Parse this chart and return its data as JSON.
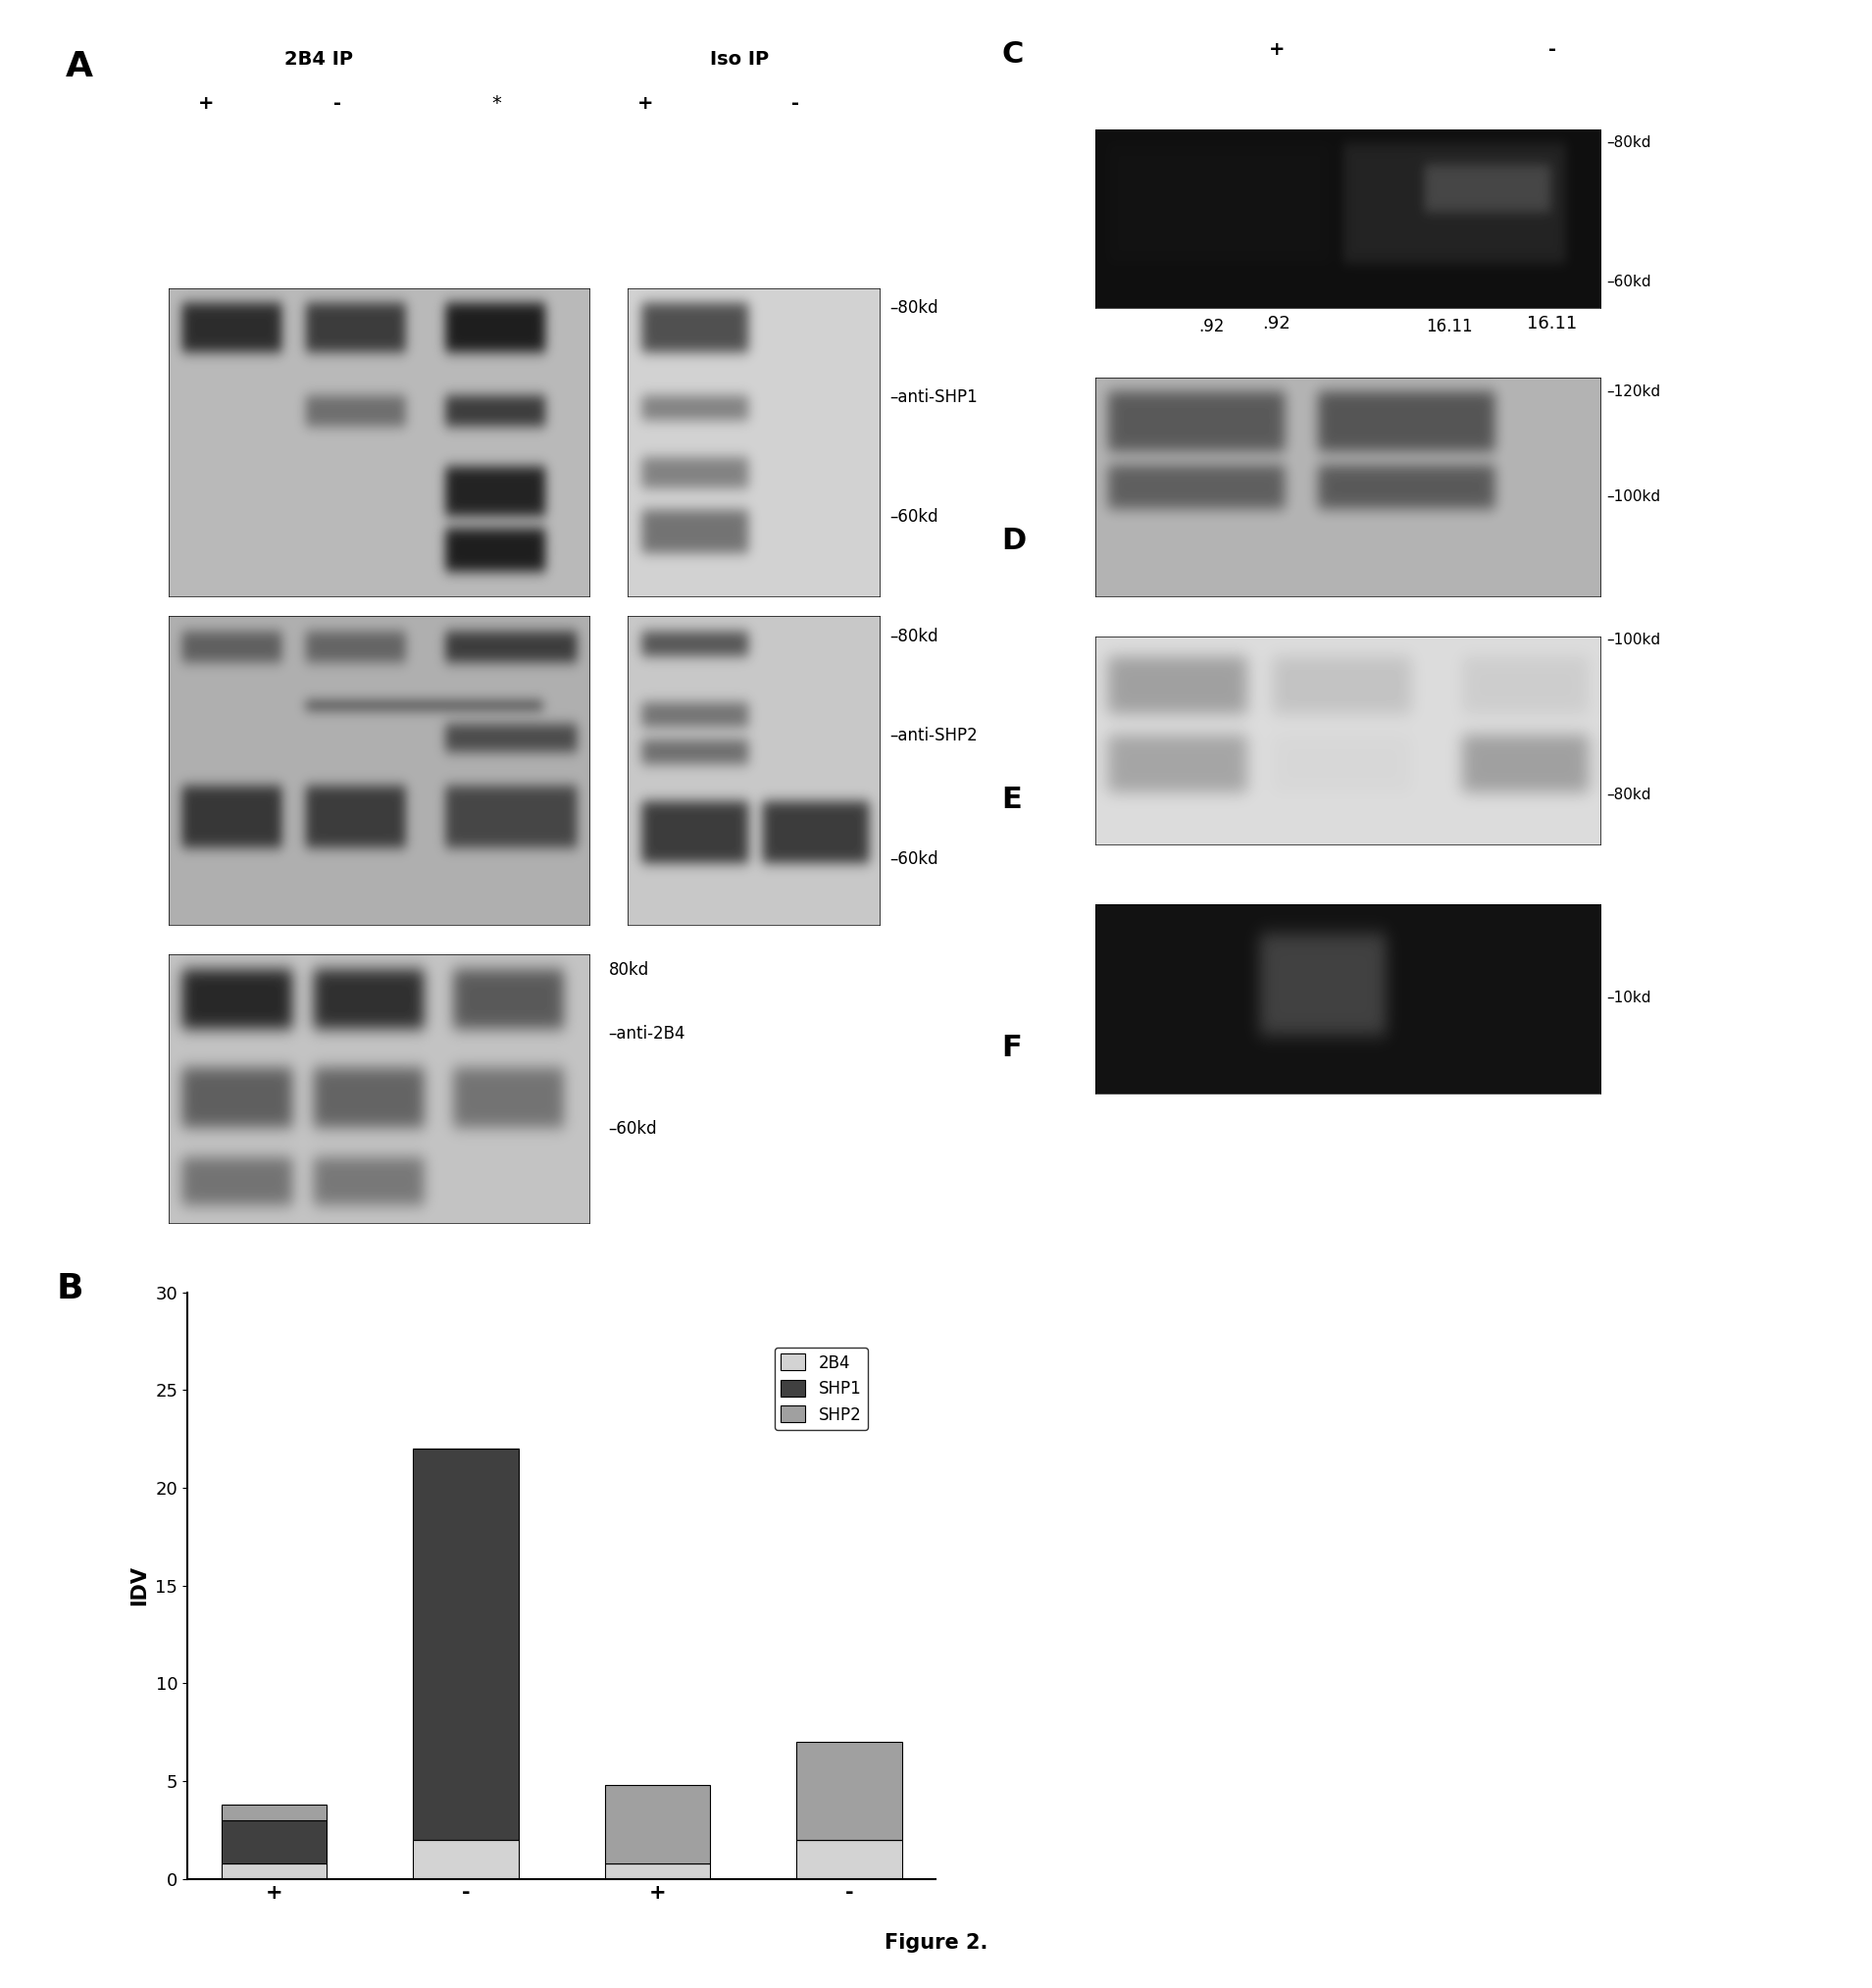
{
  "title": "Figure 2.",
  "panel_A_label": "A",
  "panel_B_label": "B",
  "panel_C_label": "C",
  "panel_D_label": "D",
  "panel_E_label": "E",
  "panel_F_label": "F",
  "header_2B4_IP": "2B4 IP",
  "header_Iso_IP": "Iso IP",
  "header_plus": "+",
  "header_minus": "-",
  "asterisk": "*",
  "blot1_right_labels": [
    "80kd",
    "anti-SHP1",
    "60kd"
  ],
  "blot2_right_labels": [
    "80kd",
    "anti-SHP2",
    "60kd"
  ],
  "blot3_labels": [
    "80kd",
    "anti-2B4",
    "60kd"
  ],
  "blotC_labels": [
    "80kd",
    "60kd"
  ],
  "blotD_labels": [
    "120kd",
    "100kd"
  ],
  "blotE_labels": [
    "100kd",
    "80kd"
  ],
  "blotF_labels": [
    "10kd"
  ],
  "C_values": [
    ".92",
    "16.11"
  ],
  "bar_categories": [
    "+",
    "-",
    "+",
    "-"
  ],
  "bar_2B4": [
    0.8,
    2.0,
    0.8,
    2.0
  ],
  "bar_SHP1": [
    2.2,
    20.0,
    0.0,
    0.0
  ],
  "bar_SHP2": [
    0.8,
    0.0,
    4.0,
    5.0
  ],
  "color_2B4": "#d3d3d3",
  "color_SHP1": "#404040",
  "color_SHP2": "#a0a0a0",
  "ylabel": "IDV",
  "ylim": [
    0,
    30
  ],
  "yticks": [
    0,
    5,
    10,
    15,
    20,
    25,
    30
  ]
}
